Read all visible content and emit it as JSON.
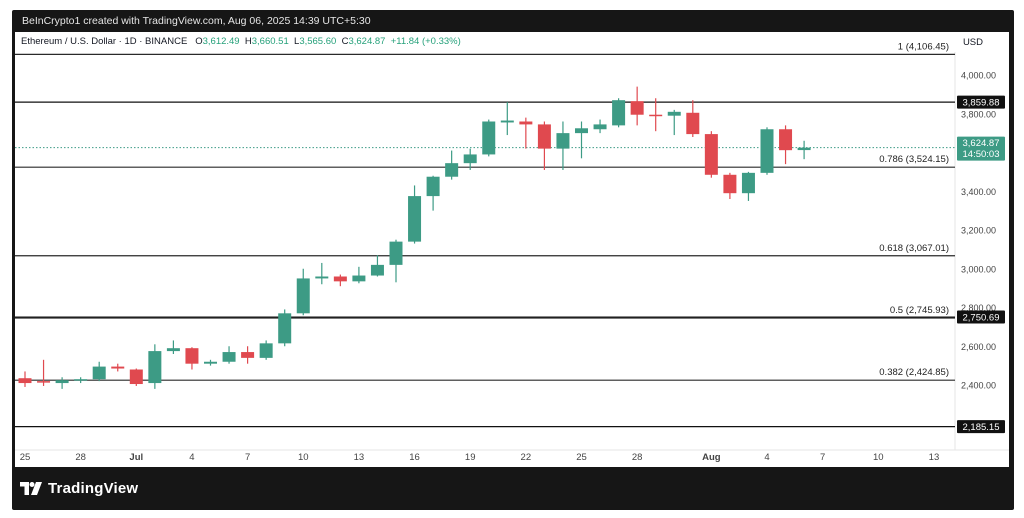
{
  "header": {
    "attribution": "BeInCrypto1 created with TradingView.com, Aug 06, 2025 14:39 UTC+5:30"
  },
  "legend": {
    "symbol": "Ethereum / U.S. Dollar · 1D · BINANCE",
    "o_label": "O",
    "o_value": "3,612.49",
    "h_label": "H",
    "h_value": "3,660.51",
    "l_label": "L",
    "l_value": "3,565.60",
    "c_label": "C",
    "c_value": "3,624.87",
    "change": "+11.84 (+0.33%)"
  },
  "currency": "USD",
  "footer": {
    "brand": "TradingView"
  },
  "colors": {
    "up": "#3d9b85",
    "down": "#e0494f",
    "line": "#2a2a2a",
    "frame": "#161616"
  },
  "chart_data": {
    "type": "candlestick",
    "title": "Ethereum / U.S. Dollar · 1D · BINANCE",
    "ylabel": "USD",
    "ylim": [
      2100,
      4300
    ],
    "y_ticks": [
      2400,
      2600,
      2800,
      3000,
      3200,
      3400,
      3600,
      3800,
      4000
    ],
    "y_tick_labels": [
      "2,400.00",
      "2,600.00",
      "2,800.00",
      "3,000.00",
      "3,200.00",
      "3,400.00",
      "3,600.00",
      "3,800.00",
      "4,000.00"
    ],
    "x_ticks": [
      {
        "day": 0,
        "label": "25"
      },
      {
        "day": 3,
        "label": "28"
      },
      {
        "day": 6,
        "label": "Jul"
      },
      {
        "day": 9,
        "label": "4"
      },
      {
        "day": 12,
        "label": "7"
      },
      {
        "day": 15,
        "label": "10"
      },
      {
        "day": 18,
        "label": "13"
      },
      {
        "day": 21,
        "label": "16"
      },
      {
        "day": 24,
        "label": "19"
      },
      {
        "day": 27,
        "label": "22"
      },
      {
        "day": 30,
        "label": "25"
      },
      {
        "day": 33,
        "label": "28"
      },
      {
        "day": 37,
        "label": "Aug"
      },
      {
        "day": 40,
        "label": "4"
      },
      {
        "day": 43,
        "label": "7"
      },
      {
        "day": 46,
        "label": "10"
      },
      {
        "day": 49,
        "label": "13"
      }
    ],
    "candles": [
      {
        "date": "Jun 25",
        "o": 2435,
        "h": 2470,
        "l": 2390,
        "c": 2410
      },
      {
        "date": "Jun 26",
        "o": 2420,
        "h": 2530,
        "l": 2395,
        "c": 2415
      },
      {
        "date": "Jun 27",
        "o": 2410,
        "h": 2440,
        "l": 2380,
        "c": 2425
      },
      {
        "date": "Jun 28",
        "o": 2425,
        "h": 2440,
        "l": 2410,
        "c": 2430
      },
      {
        "date": "Jun 29",
        "o": 2430,
        "h": 2520,
        "l": 2420,
        "c": 2495
      },
      {
        "date": "Jun 30",
        "o": 2495,
        "h": 2510,
        "l": 2470,
        "c": 2485
      },
      {
        "date": "Jul 1",
        "o": 2480,
        "h": 2485,
        "l": 2395,
        "c": 2405
      },
      {
        "date": "Jul 2",
        "o": 2410,
        "h": 2610,
        "l": 2380,
        "c": 2575
      },
      {
        "date": "Jul 3",
        "o": 2575,
        "h": 2630,
        "l": 2560,
        "c": 2590
      },
      {
        "date": "Jul 4",
        "o": 2590,
        "h": 2595,
        "l": 2480,
        "c": 2510
      },
      {
        "date": "Jul 5",
        "o": 2510,
        "h": 2530,
        "l": 2500,
        "c": 2520
      },
      {
        "date": "Jul 6",
        "o": 2520,
        "h": 2600,
        "l": 2510,
        "c": 2570
      },
      {
        "date": "Jul 7",
        "o": 2570,
        "h": 2600,
        "l": 2510,
        "c": 2540
      },
      {
        "date": "Jul 8",
        "o": 2540,
        "h": 2630,
        "l": 2530,
        "c": 2615
      },
      {
        "date": "Jul 9",
        "o": 2615,
        "h": 2790,
        "l": 2600,
        "c": 2770
      },
      {
        "date": "Jul 10",
        "o": 2770,
        "h": 3000,
        "l": 2760,
        "c": 2950
      },
      {
        "date": "Jul 11",
        "o": 2950,
        "h": 3030,
        "l": 2920,
        "c": 2960
      },
      {
        "date": "Jul 12",
        "o": 2960,
        "h": 2970,
        "l": 2910,
        "c": 2935
      },
      {
        "date": "Jul 13",
        "o": 2935,
        "h": 3010,
        "l": 2925,
        "c": 2965
      },
      {
        "date": "Jul 14",
        "o": 2965,
        "h": 3070,
        "l": 2960,
        "c": 3020
      },
      {
        "date": "Jul 15",
        "o": 3020,
        "h": 3150,
        "l": 2930,
        "c": 3140
      },
      {
        "date": "Jul 16",
        "o": 3140,
        "h": 3430,
        "l": 3130,
        "c": 3375
      },
      {
        "date": "Jul 17",
        "o": 3375,
        "h": 3480,
        "l": 3300,
        "c": 3475
      },
      {
        "date": "Jul 18",
        "o": 3475,
        "h": 3610,
        "l": 3460,
        "c": 3545
      },
      {
        "date": "Jul 19",
        "o": 3545,
        "h": 3620,
        "l": 3510,
        "c": 3590
      },
      {
        "date": "Jul 20",
        "o": 3590,
        "h": 3770,
        "l": 3580,
        "c": 3760
      },
      {
        "date": "Jul 21",
        "o": 3755,
        "h": 3860,
        "l": 3690,
        "c": 3765
      },
      {
        "date": "Jul 22",
        "o": 3760,
        "h": 3780,
        "l": 3620,
        "c": 3745
      },
      {
        "date": "Jul 23",
        "o": 3745,
        "h": 3760,
        "l": 3510,
        "c": 3620
      },
      {
        "date": "Jul 24",
        "o": 3620,
        "h": 3760,
        "l": 3510,
        "c": 3700
      },
      {
        "date": "Jul 25",
        "o": 3700,
        "h": 3760,
        "l": 3570,
        "c": 3725
      },
      {
        "date": "Jul 26",
        "o": 3720,
        "h": 3770,
        "l": 3700,
        "c": 3745
      },
      {
        "date": "Jul 27",
        "o": 3740,
        "h": 3880,
        "l": 3730,
        "c": 3870
      },
      {
        "date": "Jul 28",
        "o": 3865,
        "h": 3940,
        "l": 3740,
        "c": 3795
      },
      {
        "date": "Jul 29",
        "o": 3795,
        "h": 3880,
        "l": 3710,
        "c": 3790
      },
      {
        "date": "Jul 30",
        "o": 3790,
        "h": 3820,
        "l": 3690,
        "c": 3810
      },
      {
        "date": "Jul 31",
        "o": 3805,
        "h": 3870,
        "l": 3680,
        "c": 3695
      },
      {
        "date": "Aug 1",
        "o": 3695,
        "h": 3710,
        "l": 3470,
        "c": 3485
      },
      {
        "date": "Aug 2",
        "o": 3485,
        "h": 3495,
        "l": 3360,
        "c": 3390
      },
      {
        "date": "Aug 3",
        "o": 3390,
        "h": 3500,
        "l": 3350,
        "c": 3495
      },
      {
        "date": "Aug 4",
        "o": 3495,
        "h": 3730,
        "l": 3485,
        "c": 3720
      },
      {
        "date": "Aug 5",
        "o": 3720,
        "h": 3740,
        "l": 3540,
        "c": 3612
      },
      {
        "date": "Aug 6",
        "o": 3612.49,
        "h": 3660.51,
        "l": 3565.6,
        "c": 3624.87
      }
    ],
    "levels": [
      {
        "price": 4106.45,
        "label": "1 (4,106.45)",
        "tag": ""
      },
      {
        "price": 3859.88,
        "label": "",
        "tag": "3,859.88"
      },
      {
        "price": 3524.15,
        "label": "0.786 (3,524.15)",
        "tag": ""
      },
      {
        "price": 3067.01,
        "label": "0.618 (3,067.01)",
        "tag": ""
      },
      {
        "price": 2750.69,
        "label": "",
        "tag": "2,750.69"
      },
      {
        "price": 2745.93,
        "label": "0.5 (2,745.93)",
        "tag": ""
      },
      {
        "price": 2424.85,
        "label": "0.382 (2,424.85)",
        "tag": ""
      },
      {
        "price": 2185.15,
        "label": "",
        "tag": "2,185.15"
      }
    ],
    "last_price": {
      "value": 3624.87,
      "label": "3,624.87",
      "countdown": "14:50:03"
    },
    "grid": false,
    "legend_position": "top-left"
  }
}
